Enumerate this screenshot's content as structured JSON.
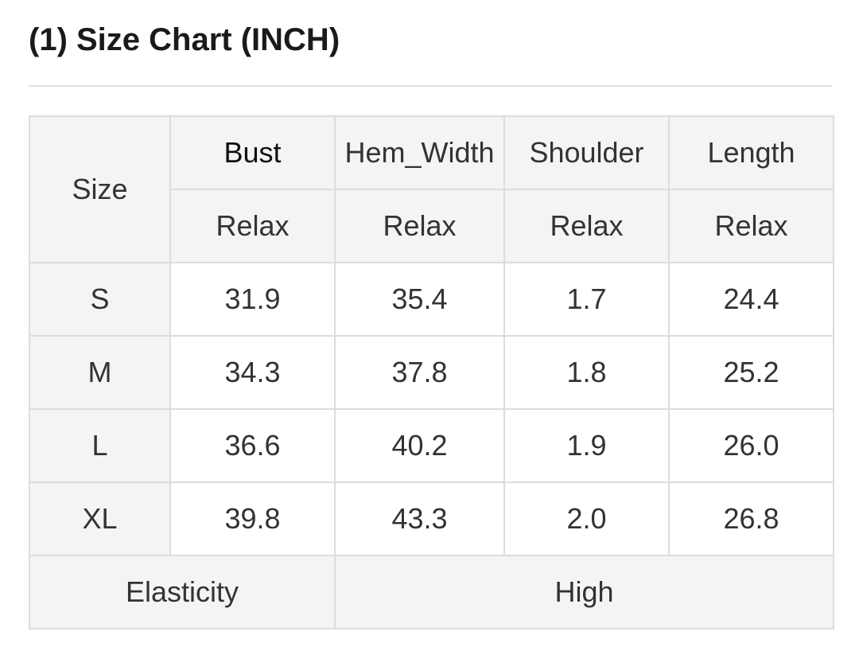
{
  "title": "(1) Size Chart (INCH)",
  "table": {
    "size_header": "Size",
    "columns": [
      "Bust",
      "Hem_Width",
      "Shoulder",
      "Length"
    ],
    "sub_headers": [
      "Relax",
      "Relax",
      "Relax",
      "Relax"
    ],
    "rows": [
      {
        "size": "S",
        "values": [
          "31.9",
          "35.4",
          "1.7",
          "24.4"
        ]
      },
      {
        "size": "M",
        "values": [
          "34.3",
          "37.8",
          "1.8",
          "25.2"
        ]
      },
      {
        "size": "L",
        "values": [
          "36.6",
          "40.2",
          "1.9",
          "26.0"
        ]
      },
      {
        "size": "XL",
        "values": [
          "39.8",
          "43.3",
          "2.0",
          "26.8"
        ]
      }
    ],
    "footer": {
      "label": "Elasticity",
      "value": "High"
    }
  },
  "colors": {
    "header_bg": "#f3f4f6",
    "border": "#dcdcdc"
  }
}
